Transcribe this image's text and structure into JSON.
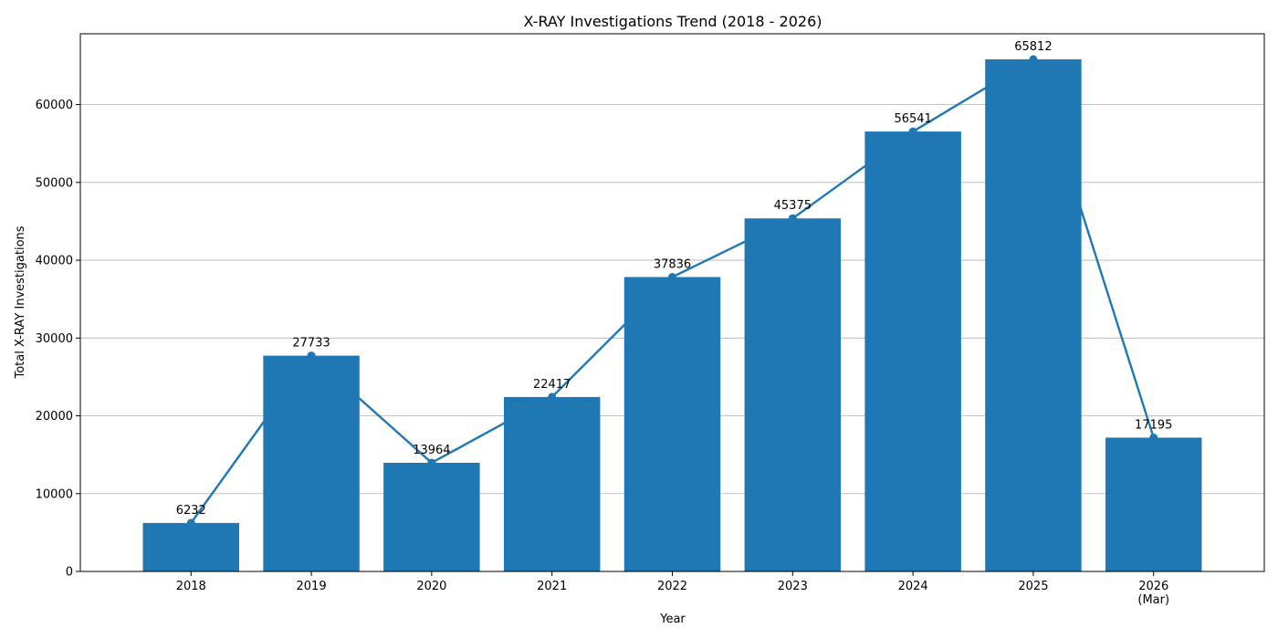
{
  "chart_data": {
    "type": "bar",
    "title": "X-RAY Investigations Trend (2018 - 2026)",
    "xlabel": "Year",
    "ylabel": "Total X-RAY Investigations",
    "categories": [
      "2018",
      "2019",
      "2020",
      "2021",
      "2022",
      "2023",
      "2024",
      "2025",
      "2026\n(Mar)"
    ],
    "values": [
      6232,
      27733,
      13964,
      22417,
      37836,
      45375,
      56541,
      65812,
      17195
    ],
    "line_overlay": true,
    "ylim": [
      0,
      69103
    ],
    "yticks": [
      0,
      10000,
      20000,
      30000,
      40000,
      50000,
      60000
    ],
    "grid": "y",
    "colors": {
      "bar": "#1f77b4",
      "line": "#1f77b4",
      "grid": "#b0b0b0",
      "axis": "#000000"
    }
  }
}
